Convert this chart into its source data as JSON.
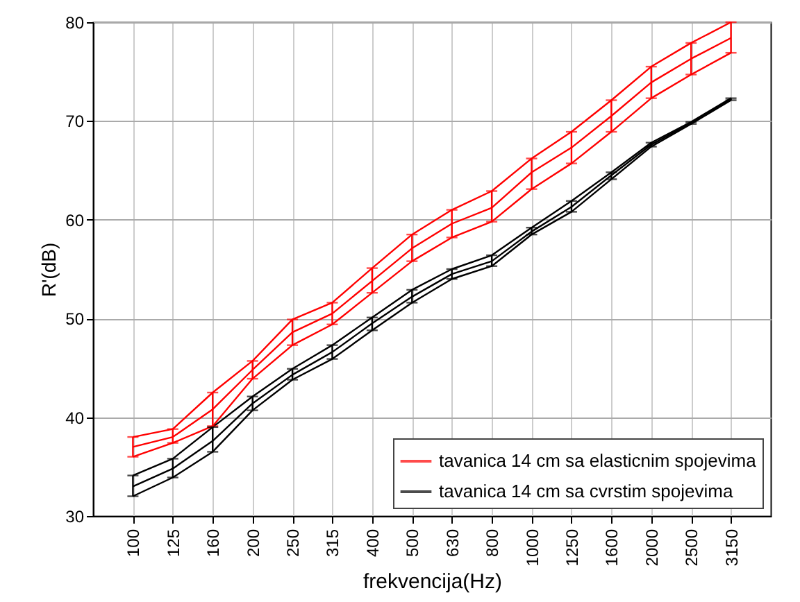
{
  "chart_data": {
    "type": "line",
    "xlabel": "frekvencija(Hz)",
    "ylabel": "R'(dB)",
    "categories": [
      "100",
      "125",
      "160",
      "200",
      "250",
      "315",
      "400",
      "500",
      "630",
      "800",
      "1000",
      "1250",
      "1600",
      "2000",
      "2500",
      "3150"
    ],
    "ylim": [
      30,
      80
    ],
    "yticks": [
      30,
      40,
      50,
      60,
      70,
      80
    ],
    "grid": true,
    "legend": "bottom right",
    "series": [
      {
        "name": "tavanica 14 cm sa elasticnim spojevima",
        "color": "#ff0000",
        "values": [
          37.0,
          38.0,
          40.8,
          44.8,
          48.6,
          50.5,
          53.8,
          57.1,
          59.6,
          61.2,
          64.8,
          67.3,
          70.5,
          73.9,
          76.3,
          78.4
        ],
        "errors": [
          [
            36.0,
            38.0
          ],
          [
            37.4,
            38.8
          ],
          [
            39.1,
            42.5
          ],
          [
            43.9,
            45.7
          ],
          [
            47.3,
            49.9
          ],
          [
            49.4,
            51.6
          ],
          [
            52.6,
            55.1
          ],
          [
            55.8,
            58.5
          ],
          [
            58.2,
            61.0
          ],
          [
            59.8,
            62.9
          ],
          [
            63.1,
            66.2
          ],
          [
            65.7,
            68.9
          ],
          [
            68.9,
            72.1
          ],
          [
            72.3,
            75.5
          ],
          [
            74.7,
            77.9
          ],
          [
            76.9,
            80.0
          ]
        ]
      },
      {
        "color": "#ff0000",
        "values": [
          38.0,
          38.8,
          42.5,
          45.7,
          49.9,
          51.6,
          55.1,
          58.5,
          61.0,
          62.9,
          66.2,
          68.9,
          72.1,
          75.5,
          77.9,
          80.0
        ]
      },
      {
        "color": "#ff0000",
        "values": [
          36.0,
          37.4,
          39.1,
          43.9,
          47.3,
          49.4,
          52.6,
          55.8,
          58.2,
          59.8,
          63.1,
          65.7,
          68.9,
          72.3,
          74.7,
          76.9
        ]
      },
      {
        "name": "tavanica 14 cm sa cvrstim spojevima",
        "color": "#000000",
        "values": [
          33.0,
          34.8,
          37.6,
          41.4,
          44.3,
          46.6,
          49.5,
          52.2,
          54.5,
          55.8,
          58.8,
          61.3,
          64.5,
          67.6,
          69.8,
          72.2
        ],
        "errors": [
          [
            32.0,
            34.1
          ],
          [
            33.9,
            35.8
          ],
          [
            36.5,
            39.0
          ],
          [
            40.7,
            42.1
          ],
          [
            43.8,
            44.9
          ],
          [
            45.9,
            47.3
          ],
          [
            48.8,
            50.1
          ],
          [
            51.6,
            52.9
          ],
          [
            54.0,
            55.0
          ],
          [
            55.3,
            56.4
          ],
          [
            58.5,
            59.2
          ],
          [
            60.8,
            61.9
          ],
          [
            64.1,
            64.8
          ],
          [
            67.4,
            67.8
          ],
          [
            69.7,
            69.9
          ],
          [
            72.1,
            72.3
          ]
        ]
      },
      {
        "color": "#000000",
        "values": [
          34.1,
          35.8,
          39.0,
          42.1,
          44.9,
          47.3,
          50.1,
          52.9,
          55.0,
          56.4,
          59.2,
          61.9,
          64.8,
          67.8,
          69.9,
          72.3
        ]
      },
      {
        "color": "#000000",
        "values": [
          32.0,
          33.9,
          36.5,
          40.7,
          43.8,
          45.9,
          48.8,
          51.6,
          54.0,
          55.3,
          58.5,
          60.8,
          64.1,
          67.4,
          69.7,
          72.1
        ]
      }
    ]
  }
}
